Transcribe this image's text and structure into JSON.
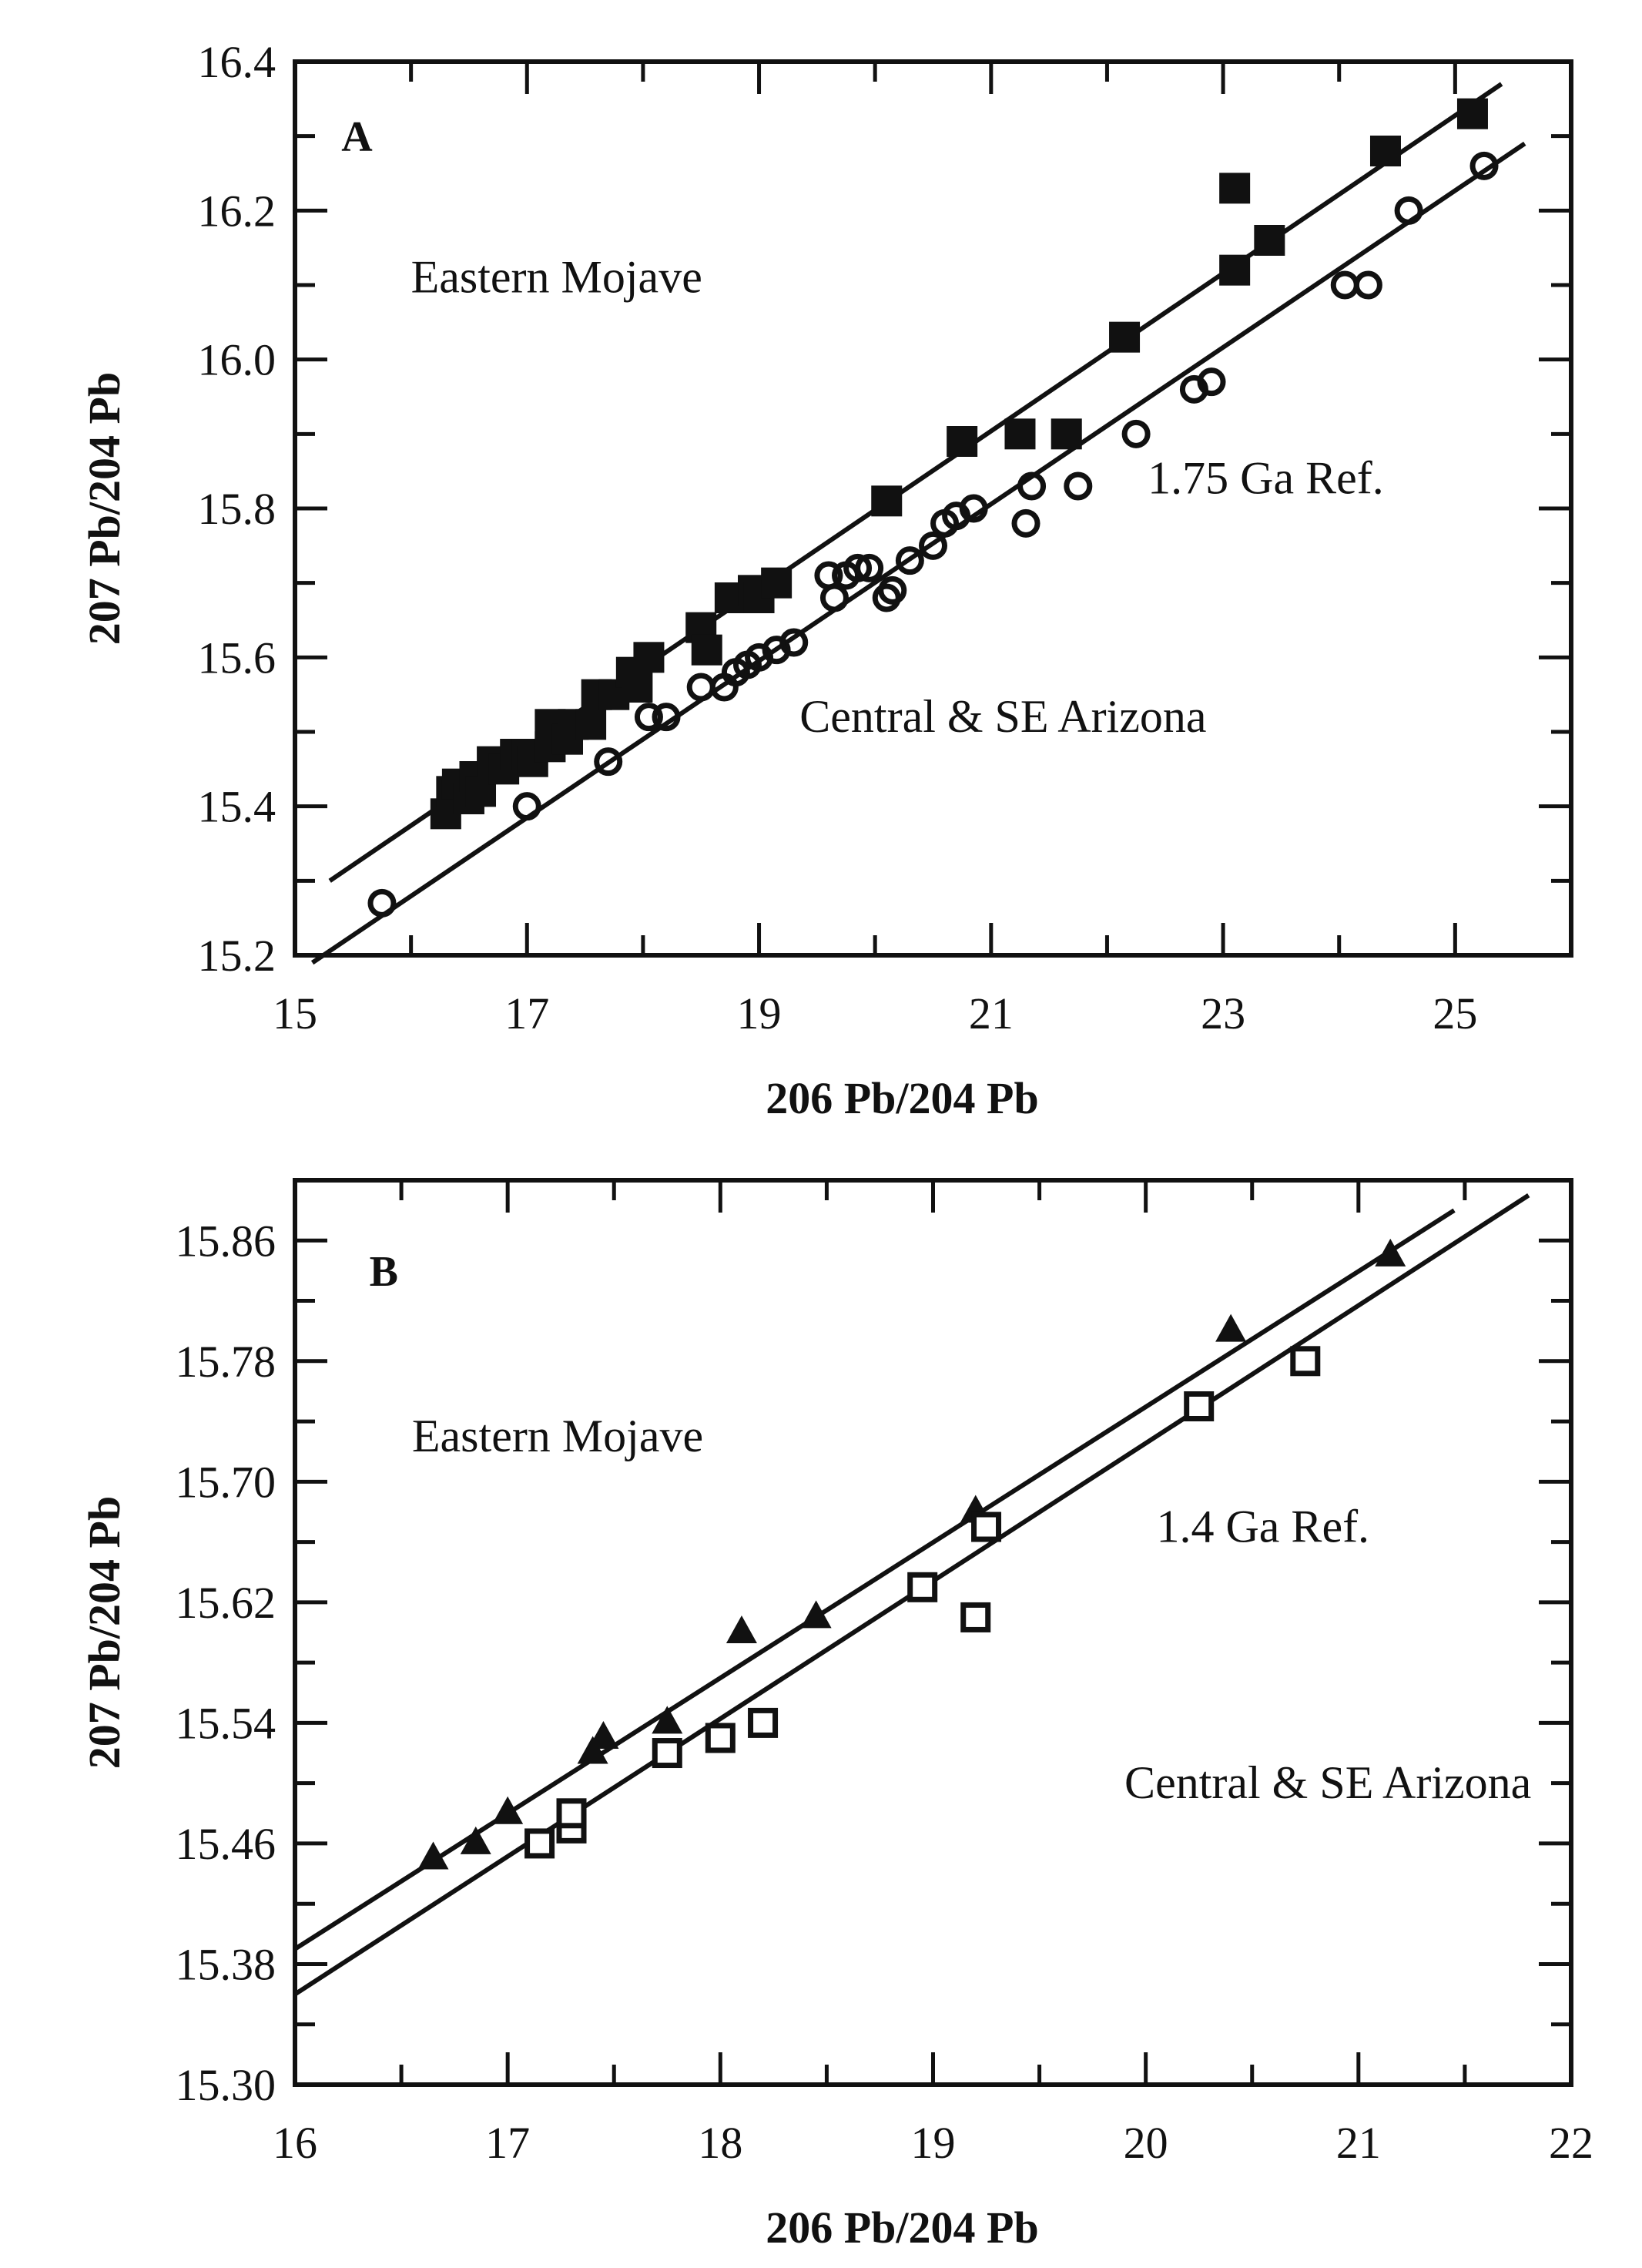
{
  "chart_data": [
    {
      "panel": "A",
      "type": "scatter",
      "xlabel": "206 Pb/204 Pb",
      "ylabel": "207 Pb/204 Pb",
      "xlim": [
        15,
        26
      ],
      "ylim": [
        15.2,
        16.4
      ],
      "x_major_ticks": [
        15,
        17,
        19,
        21,
        23,
        25
      ],
      "x_minor_step": 1,
      "y_major_ticks": [
        15.2,
        15.4,
        15.6,
        15.8,
        16.0,
        16.2,
        16.4
      ],
      "y_minor_step": 0.1,
      "x_tick_labels": [
        "15",
        "17",
        "19",
        "21",
        "23",
        "25"
      ],
      "y_tick_labels": [
        "15.2",
        "15.4",
        "15.6",
        "15.8",
        "16.0",
        "16.2",
        "16.4"
      ],
      "grid": false,
      "annotations": [
        {
          "text": "A",
          "role": "panel-letter",
          "x": 15.4,
          "y": 16.28
        },
        {
          "text": "Eastern Mojave",
          "x": 16.0,
          "y": 16.09
        },
        {
          "text": "1.75 Ga Ref.",
          "x": 22.35,
          "y": 15.82
        },
        {
          "text": "Central & SE Arizona",
          "x": 19.35,
          "y": 15.5
        }
      ],
      "series": [
        {
          "name": "Eastern Mojave",
          "marker": "filled-square",
          "points": [
            [
              16.3,
              15.39
            ],
            [
              16.35,
              15.42
            ],
            [
              16.4,
              15.43
            ],
            [
              16.5,
              15.41
            ],
            [
              16.55,
              15.44
            ],
            [
              16.6,
              15.42
            ],
            [
              16.7,
              15.46
            ],
            [
              16.8,
              15.45
            ],
            [
              16.9,
              15.47
            ],
            [
              17.0,
              15.47
            ],
            [
              17.05,
              15.46
            ],
            [
              17.2,
              15.48
            ],
            [
              17.2,
              15.51
            ],
            [
              17.35,
              15.49
            ],
            [
              17.4,
              15.51
            ],
            [
              17.55,
              15.51
            ],
            [
              17.6,
              15.55
            ],
            [
              17.75,
              15.55
            ],
            [
              17.9,
              15.58
            ],
            [
              17.95,
              15.56
            ],
            [
              18.05,
              15.6
            ],
            [
              18.5,
              15.64
            ],
            [
              18.55,
              15.61
            ],
            [
              18.75,
              15.68
            ],
            [
              18.95,
              15.69
            ],
            [
              19.0,
              15.68
            ],
            [
              19.15,
              15.7
            ],
            [
              20.1,
              15.81
            ],
            [
              20.75,
              15.89
            ],
            [
              21.25,
              15.9
            ],
            [
              21.65,
              15.9
            ],
            [
              22.15,
              16.03
            ],
            [
              23.1,
              16.12
            ],
            [
              23.1,
              16.23
            ],
            [
              23.4,
              16.16
            ],
            [
              24.4,
              16.28
            ],
            [
              25.15,
              16.33
            ]
          ]
        },
        {
          "name": "Central & SE Arizona",
          "marker": "open-circle",
          "points": [
            [
              15.75,
              15.27
            ],
            [
              17.0,
              15.4
            ],
            [
              17.7,
              15.46
            ],
            [
              18.05,
              15.52
            ],
            [
              18.2,
              15.52
            ],
            [
              18.5,
              15.56
            ],
            [
              18.7,
              15.56
            ],
            [
              18.8,
              15.58
            ],
            [
              18.9,
              15.59
            ],
            [
              19.0,
              15.6
            ],
            [
              19.15,
              15.61
            ],
            [
              19.3,
              15.62
            ],
            [
              19.6,
              15.71
            ],
            [
              19.65,
              15.68
            ],
            [
              19.75,
              15.71
            ],
            [
              19.85,
              15.72
            ],
            [
              19.95,
              15.72
            ],
            [
              20.1,
              15.68
            ],
            [
              20.15,
              15.69
            ],
            [
              20.3,
              15.73
            ],
            [
              20.5,
              15.75
            ],
            [
              20.6,
              15.78
            ],
            [
              20.7,
              15.79
            ],
            [
              20.85,
              15.8
            ],
            [
              21.3,
              15.78
            ],
            [
              21.35,
              15.83
            ],
            [
              21.75,
              15.83
            ],
            [
              22.25,
              15.9
            ],
            [
              22.75,
              15.96
            ],
            [
              22.9,
              15.97
            ],
            [
              24.05,
              16.1
            ],
            [
              24.25,
              16.1
            ],
            [
              24.6,
              16.2
            ],
            [
              25.25,
              16.26
            ]
          ]
        }
      ],
      "reference_lines": [
        {
          "name": "Eastern Mojave 1.75 Ga reference",
          "from": [
            15.3,
            15.3
          ],
          "to": [
            25.4,
            16.37
          ]
        },
        {
          "name": "Central & SE Arizona 1.75 Ga reference",
          "from": [
            15.15,
            15.19
          ],
          "to": [
            25.6,
            16.29
          ]
        }
      ]
    },
    {
      "panel": "B",
      "type": "scatter",
      "xlabel": "206 Pb/204 Pb",
      "ylabel": "207 Pb/204 Pb",
      "xlim": [
        16,
        22
      ],
      "ylim": [
        15.3,
        15.9
      ],
      "x_major_ticks": [
        16,
        17,
        18,
        19,
        20,
        21,
        22
      ],
      "x_minor_step": 0.5,
      "y_major_ticks": [
        15.3,
        15.38,
        15.46,
        15.54,
        15.62,
        15.7,
        15.78,
        15.86
      ],
      "y_minor_step": 0.04,
      "x_tick_labels": [
        "16",
        "17",
        "18",
        "19",
        "20",
        "21",
        "22"
      ],
      "y_tick_labels": [
        "15.30",
        "15.38",
        "15.46",
        "15.54",
        "15.62",
        "15.70",
        "15.78",
        "15.86"
      ],
      "grid": false,
      "annotations": [
        {
          "text": "B",
          "role": "panel-letter",
          "x": 16.35,
          "y": 15.83
        },
        {
          "text": "Eastern Mojave",
          "x": 16.55,
          "y": 15.72
        },
        {
          "text": "1.4 Ga Ref.",
          "x": 20.05,
          "y": 15.66
        },
        {
          "text": "Central & SE Arizona",
          "x": 19.9,
          "y": 15.49
        }
      ],
      "series": [
        {
          "name": "Eastern Mojave",
          "marker": "filled-triangle",
          "points": [
            [
              16.65,
              15.45
            ],
            [
              16.85,
              15.46
            ],
            [
              17.0,
              15.48
            ],
            [
              17.4,
              15.52
            ],
            [
              17.45,
              15.53
            ],
            [
              17.75,
              15.54
            ],
            [
              18.1,
              15.6
            ],
            [
              18.45,
              15.61
            ],
            [
              19.2,
              15.68
            ],
            [
              20.4,
              15.8
            ],
            [
              21.15,
              15.85
            ]
          ]
        },
        {
          "name": "Central & SE Arizona",
          "marker": "open-square",
          "points": [
            [
              17.15,
              15.46
            ],
            [
              17.3,
              15.47
            ],
            [
              17.3,
              15.48
            ],
            [
              17.75,
              15.52
            ],
            [
              18.0,
              15.53
            ],
            [
              18.2,
              15.54
            ],
            [
              18.95,
              15.63
            ],
            [
              19.2,
              15.61
            ],
            [
              19.25,
              15.67
            ],
            [
              20.25,
              15.75
            ],
            [
              20.75,
              15.78
            ]
          ]
        }
      ],
      "reference_lines": [
        {
          "name": "Eastern Mojave 1.4 Ga reference",
          "from": [
            16.0,
            15.39
          ],
          "to": [
            21.45,
            15.88
          ]
        },
        {
          "name": "Central & SE Arizona 1.4 Ga reference",
          "from": [
            16.0,
            15.36
          ],
          "to": [
            21.8,
            15.89
          ]
        }
      ]
    }
  ]
}
